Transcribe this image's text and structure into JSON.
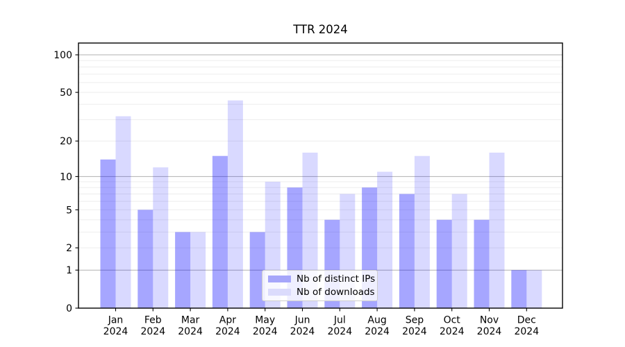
{
  "title": "TTR 2024",
  "chart_data": {
    "type": "bar",
    "title": "TTR 2024",
    "categories": [
      "Jan 2024",
      "Feb 2024",
      "Mar 2024",
      "Apr 2024",
      "May 2024",
      "Jun 2024",
      "Jul 2024",
      "Aug 2024",
      "Sep 2024",
      "Oct 2024",
      "Nov 2024",
      "Dec 2024"
    ],
    "series": [
      {
        "name": "Nb of distinct IPs",
        "values": [
          14,
          5,
          3,
          15,
          3,
          8,
          4,
          8,
          7,
          4,
          4,
          1
        ],
        "color": "rgba(0,0,255,0.35)",
        "legend_swatch_color": "#a6a6fa"
      },
      {
        "name": "Nb of downloads",
        "values": [
          32,
          12,
          3,
          43,
          9,
          16,
          7,
          11,
          15,
          7,
          16,
          1
        ],
        "color": "rgba(0,0,255,0.15)",
        "legend_swatch_color": "#dbdbfc"
      }
    ],
    "yscale": "log1p",
    "ylim": [
      0,
      120
    ],
    "yticks": [
      0,
      1,
      2,
      5,
      10,
      20,
      50,
      100
    ],
    "grid": {
      "major": [
        1,
        10,
        100
      ],
      "minor": [
        2,
        3,
        4,
        5,
        6,
        7,
        8,
        9,
        20,
        30,
        40,
        50,
        60,
        70,
        80,
        90
      ],
      "major_color": "#b1b1b1",
      "minor_color": "#ededed"
    },
    "legend_position": "lower center",
    "background_color": "#ffffff",
    "spine_color": "#000000"
  }
}
